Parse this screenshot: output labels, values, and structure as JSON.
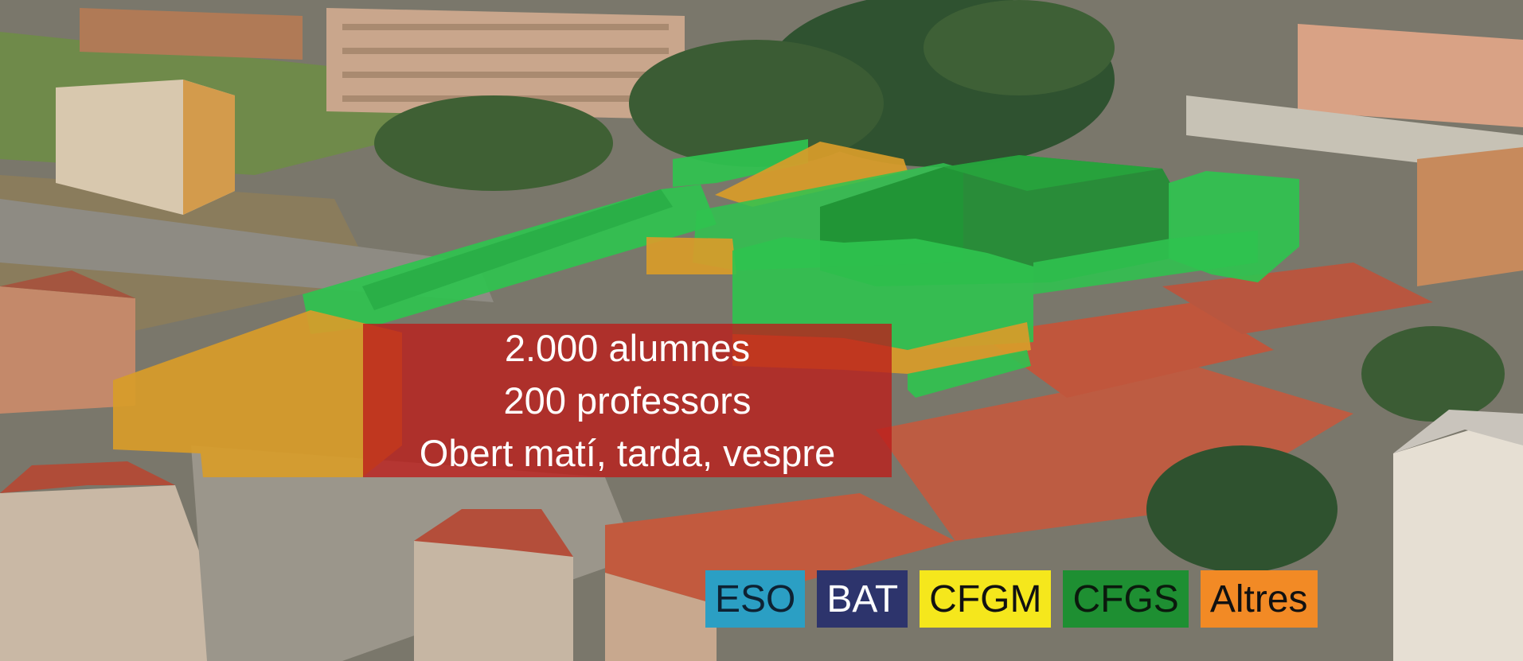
{
  "info": {
    "line1": "2.000 alumnes",
    "line2": "200 professors",
    "line3": "Obert matí, tarda, vespre"
  },
  "legend": [
    {
      "label": "ESO",
      "color": "#2b9fc4",
      "text_color": "#0e2233"
    },
    {
      "label": "BAT",
      "color": "#2d346c",
      "text_color": "#ffffff"
    },
    {
      "label": "CFGM",
      "color": "#f5e71c",
      "text_color": "#111111"
    },
    {
      "label": "CFGS",
      "color": "#1e8f32",
      "text_color": "#0b1a0d"
    },
    {
      "label": "Altres",
      "color": "#f28a25",
      "text_color": "#111111"
    }
  ],
  "overlay_colors": {
    "green": "#2fc34f",
    "orange": "#d79c2a",
    "red_box": "#bc1e1c"
  }
}
